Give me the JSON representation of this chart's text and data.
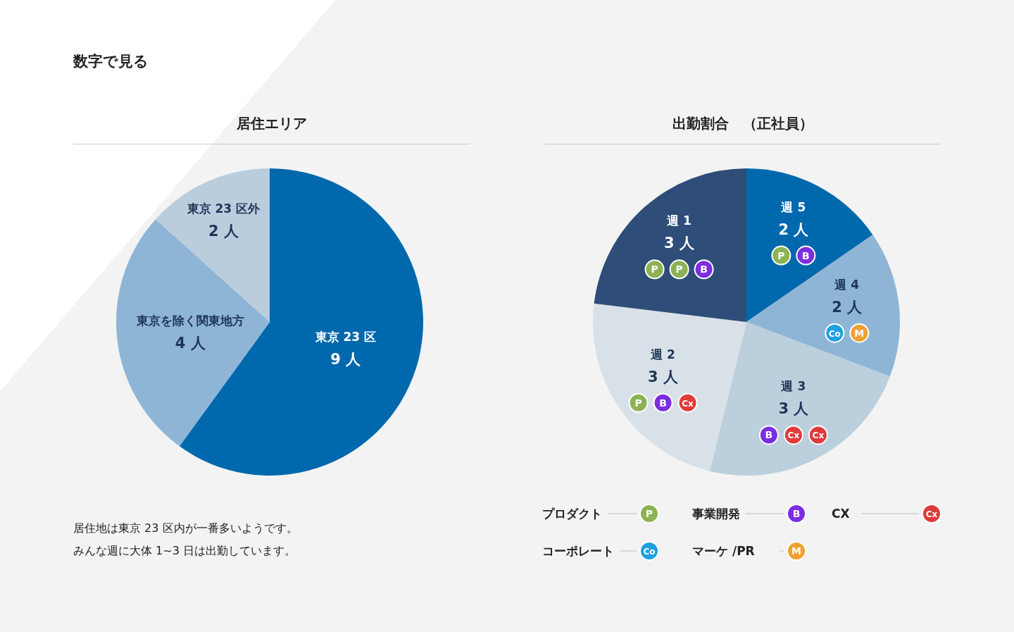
{
  "chart_data": [
    {
      "type": "pie",
      "title": "居住エリア",
      "categories": [
        "東京 23 区",
        "東京を除く関東地方",
        "東京 23 区外"
      ],
      "values": [
        9,
        4,
        2
      ],
      "value_labels": [
        "9 人",
        "4 人",
        "2 人"
      ],
      "colors": [
        "#0068ad",
        "#8fb5d6",
        "#bacddd"
      ],
      "annotations": [
        "数字で見る",
        "居住地は東京 23 区内が一番多いようです。",
        "みんな週に大体 1~3 日は出勤しています。"
      ]
    },
    {
      "type": "pie",
      "title": "出勤割合　（正社員）",
      "categories": [
        "週 5",
        "週 4",
        "週 3",
        "週 2",
        "週 1"
      ],
      "values": [
        2,
        2,
        3,
        3,
        3
      ],
      "value_labels": [
        "2 人",
        "2 人",
        "3 人",
        "3 人",
        "3 人"
      ],
      "colors": [
        "#0068ad",
        "#8fb5d6",
        "#bccfdd",
        "#d9e1e8",
        "#2e4d78"
      ],
      "annotations": [
        {
          "text": "P",
          "x": "週 5"
        },
        {
          "text": "B",
          "x": "週 5"
        },
        {
          "text": "Co",
          "x": "週 4"
        },
        {
          "text": "M",
          "x": "週 4"
        },
        {
          "text": "B",
          "x": "週 3"
        },
        {
          "text": "Cx",
          "x": "週 3"
        },
        {
          "text": "Cx",
          "x": "週 3"
        },
        {
          "text": "P",
          "x": "週 2"
        },
        {
          "text": "B",
          "x": "週 2"
        },
        {
          "text": "Cx",
          "x": "週 2"
        },
        {
          "text": "P",
          "x": "週 1"
        },
        {
          "text": "P",
          "x": "週 1"
        },
        {
          "text": "B",
          "x": "週 1"
        },
        "プロダクト",
        "P",
        "事業開発",
        "B",
        "CX",
        "Cx",
        "コーポレート",
        "Co",
        "マーケ /PR",
        "M"
      ]
    }
  ]
}
